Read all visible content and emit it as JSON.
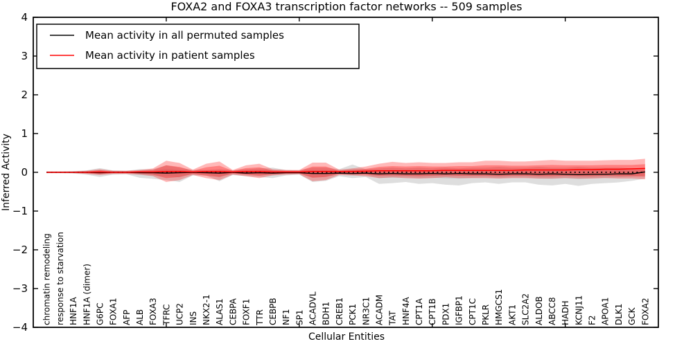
{
  "figure": {
    "title": "FOXA2 and FOXA3 transcription factor networks -- 509 samples",
    "xlabel": "Cellular Entities",
    "ylabel": "Inferred Activity"
  },
  "legend": {
    "position": "upper-left",
    "entries": [
      {
        "label": "Mean activity in all permuted samples",
        "color": "#000000"
      },
      {
        "label": "Mean activity in patient samples",
        "color": "#ff0000"
      }
    ]
  },
  "chart_data": {
    "type": "line",
    "title": "FOXA2 and FOXA3 transcription factor networks -- 509 samples",
    "xlabel": "Cellular Entities",
    "ylabel": "Inferred Activity",
    "ylim": [
      -4,
      4
    ],
    "ytick_labels": [
      "4",
      "3",
      "2",
      "1",
      "0",
      "−1",
      "−2",
      "−3",
      "−4"
    ],
    "ytick_values": [
      4,
      3,
      2,
      1,
      0,
      -1,
      -2,
      -3,
      -4
    ],
    "xtick_values": [
      10,
      20,
      30,
      40
    ],
    "grid": false,
    "zero_reference_line": {
      "style": "dotted",
      "color": "#000000",
      "value": 0
    },
    "categories": [
      "chromatin remodeling",
      "response to starvation",
      "HNF1A",
      "HNF1A (dimer)",
      "G6PC",
      "FOXA1",
      "AFP",
      "ALB",
      "FOXA3",
      "TFRC",
      "UCP2",
      "INS",
      "NKX2-1",
      "ALAS1",
      "CEBPA",
      "FOXF1",
      "TTR",
      "CEBPB",
      "NF1",
      "SP1",
      "ACADVL",
      "BDH1",
      "CREB1",
      "PCK1",
      "NR3C1",
      "ACADM",
      "TAT",
      "HNF4A",
      "CPT1A",
      "CPT1B",
      "PDX1",
      "IGFBP1",
      "CPT1C",
      "PKLR",
      "HMGCS1",
      "AKT1",
      "SLC2A2",
      "ALDOB",
      "ABCC8",
      "HADH",
      "KCNJ11",
      "F2",
      "APOA1",
      "DLK1",
      "GCK",
      "FOXA2"
    ],
    "series": [
      {
        "name": "Mean activity in all permuted samples",
        "color": "#000000",
        "band_color": "#999999",
        "values": [
          0,
          0,
          0,
          0,
          -0.01,
          0,
          0,
          -0.01,
          -0.01,
          -0.02,
          -0.01,
          0,
          -0.01,
          -0.02,
          0,
          -0.02,
          -0.01,
          -0.02,
          -0.01,
          -0.01,
          -0.03,
          -0.03,
          -0.02,
          -0.03,
          -0.02,
          -0.04,
          -0.03,
          -0.04,
          -0.04,
          -0.03,
          -0.04,
          -0.03,
          -0.04,
          -0.04,
          -0.05,
          -0.04,
          -0.04,
          -0.05,
          -0.04,
          -0.05,
          -0.06,
          -0.05,
          -0.05,
          -0.04,
          -0.04,
          0.01
        ],
        "band_upper": [
          0.02,
          0.02,
          0.03,
          0.05,
          0.11,
          0.05,
          0.04,
          0.08,
          0.08,
          0.18,
          0.12,
          0.06,
          0.06,
          0.08,
          0.05,
          0.08,
          0.1,
          0.12,
          0.06,
          0.05,
          0.12,
          0.12,
          0.08,
          0.2,
          0.08,
          0.1,
          0.12,
          0.1,
          0.12,
          0.1,
          0.12,
          0.1,
          0.12,
          0.12,
          0.14,
          0.12,
          0.12,
          0.14,
          0.12,
          0.12,
          0.14,
          0.12,
          0.12,
          0.12,
          0.1,
          0.1
        ],
        "band_lower": [
          -0.02,
          -0.02,
          -0.03,
          -0.06,
          -0.12,
          -0.06,
          -0.05,
          -0.14,
          -0.17,
          -0.2,
          -0.25,
          -0.08,
          -0.08,
          -0.23,
          -0.07,
          -0.1,
          -0.12,
          -0.15,
          -0.08,
          -0.06,
          -0.25,
          -0.22,
          -0.1,
          -0.15,
          -0.12,
          -0.3,
          -0.28,
          -0.25,
          -0.3,
          -0.28,
          -0.32,
          -0.34,
          -0.28,
          -0.26,
          -0.3,
          -0.26,
          -0.26,
          -0.32,
          -0.34,
          -0.3,
          -0.35,
          -0.3,
          -0.28,
          -0.26,
          -0.22,
          -0.16
        ],
        "band_inner_upper": [
          0.01,
          0.01,
          0.02,
          0.03,
          0.06,
          0.03,
          0.02,
          0.04,
          0.04,
          0.09,
          0.06,
          0.03,
          0.03,
          0.04,
          0.03,
          0.04,
          0.05,
          0.06,
          0.03,
          0.03,
          0.06,
          0.06,
          0.04,
          0.1,
          0.04,
          0.05,
          0.06,
          0.05,
          0.06,
          0.05,
          0.06,
          0.05,
          0.06,
          0.06,
          0.07,
          0.06,
          0.06,
          0.07,
          0.06,
          0.06,
          0.07,
          0.06,
          0.06,
          0.06,
          0.05,
          0.05
        ],
        "band_inner_lower": [
          -0.01,
          -0.01,
          -0.02,
          -0.03,
          -0.06,
          -0.03,
          -0.03,
          -0.07,
          -0.09,
          -0.1,
          -0.13,
          -0.04,
          -0.04,
          -0.12,
          -0.04,
          -0.05,
          -0.06,
          -0.08,
          -0.04,
          -0.03,
          -0.13,
          -0.11,
          -0.05,
          -0.08,
          -0.06,
          -0.15,
          -0.14,
          -0.13,
          -0.15,
          -0.14,
          -0.16,
          -0.17,
          -0.14,
          -0.13,
          -0.15,
          -0.13,
          -0.13,
          -0.16,
          -0.17,
          -0.15,
          -0.18,
          -0.15,
          -0.14,
          -0.13,
          -0.11,
          -0.08
        ]
      },
      {
        "name": "Mean activity in patient samples",
        "color": "#ff0000",
        "band_color": "#ff0000",
        "values": [
          0,
          0,
          0,
          0,
          0.01,
          0,
          0,
          0.01,
          0.01,
          0.02,
          0.02,
          0.01,
          0.02,
          0.02,
          0.01,
          0.02,
          0.02,
          0.01,
          0.01,
          0.01,
          0.02,
          0.02,
          0.02,
          0.02,
          0.03,
          0.04,
          0.04,
          0.04,
          0.04,
          0.04,
          0.05,
          0.05,
          0.05,
          0.05,
          0.05,
          0.05,
          0.06,
          0.06,
          0.06,
          0.06,
          0.07,
          0.07,
          0.08,
          0.08,
          0.09,
          0.1
        ],
        "band_upper": [
          0.02,
          0.02,
          0.02,
          0.04,
          0.08,
          0.04,
          0.04,
          0.06,
          0.1,
          0.3,
          0.24,
          0.07,
          0.22,
          0.28,
          0.06,
          0.18,
          0.22,
          0.08,
          0.06,
          0.06,
          0.25,
          0.25,
          0.07,
          0.1,
          0.15,
          0.22,
          0.27,
          0.24,
          0.26,
          0.24,
          0.24,
          0.26,
          0.26,
          0.3,
          0.3,
          0.28,
          0.28,
          0.3,
          0.32,
          0.3,
          0.3,
          0.3,
          0.31,
          0.32,
          0.32,
          0.35
        ],
        "band_lower": [
          -0.02,
          -0.02,
          -0.02,
          -0.04,
          -0.07,
          -0.04,
          -0.04,
          -0.06,
          -0.1,
          -0.25,
          -0.2,
          -0.07,
          -0.15,
          -0.2,
          -0.06,
          -0.1,
          -0.15,
          -0.08,
          -0.06,
          -0.05,
          -0.23,
          -0.2,
          -0.07,
          -0.08,
          -0.1,
          -0.15,
          -0.13,
          -0.15,
          -0.16,
          -0.15,
          -0.13,
          -0.15,
          -0.15,
          -0.15,
          -0.16,
          -0.15,
          -0.15,
          -0.16,
          -0.16,
          -0.15,
          -0.16,
          -0.16,
          -0.15,
          -0.16,
          -0.16,
          -0.18
        ],
        "band_inner_upper": [
          0.01,
          0.01,
          0.01,
          0.02,
          0.05,
          0.02,
          0.02,
          0.04,
          0.06,
          0.18,
          0.14,
          0.04,
          0.13,
          0.17,
          0.04,
          0.11,
          0.13,
          0.05,
          0.04,
          0.04,
          0.15,
          0.15,
          0.04,
          0.06,
          0.09,
          0.14,
          0.16,
          0.15,
          0.16,
          0.15,
          0.15,
          0.16,
          0.16,
          0.18,
          0.18,
          0.17,
          0.17,
          0.18,
          0.19,
          0.18,
          0.18,
          0.18,
          0.19,
          0.19,
          0.19,
          0.21
        ],
        "band_inner_lower": [
          -0.01,
          -0.01,
          -0.01,
          -0.02,
          -0.04,
          -0.02,
          -0.02,
          -0.03,
          -0.06,
          -0.15,
          -0.12,
          -0.04,
          -0.09,
          -0.12,
          -0.03,
          -0.06,
          -0.09,
          -0.05,
          -0.03,
          -0.03,
          -0.14,
          -0.12,
          -0.04,
          -0.05,
          -0.06,
          -0.09,
          -0.08,
          -0.09,
          -0.1,
          -0.09,
          -0.08,
          -0.09,
          -0.09,
          -0.09,
          -0.1,
          -0.09,
          -0.09,
          -0.1,
          -0.1,
          -0.09,
          -0.1,
          -0.1,
          -0.09,
          -0.1,
          -0.1,
          -0.11
        ]
      }
    ]
  }
}
